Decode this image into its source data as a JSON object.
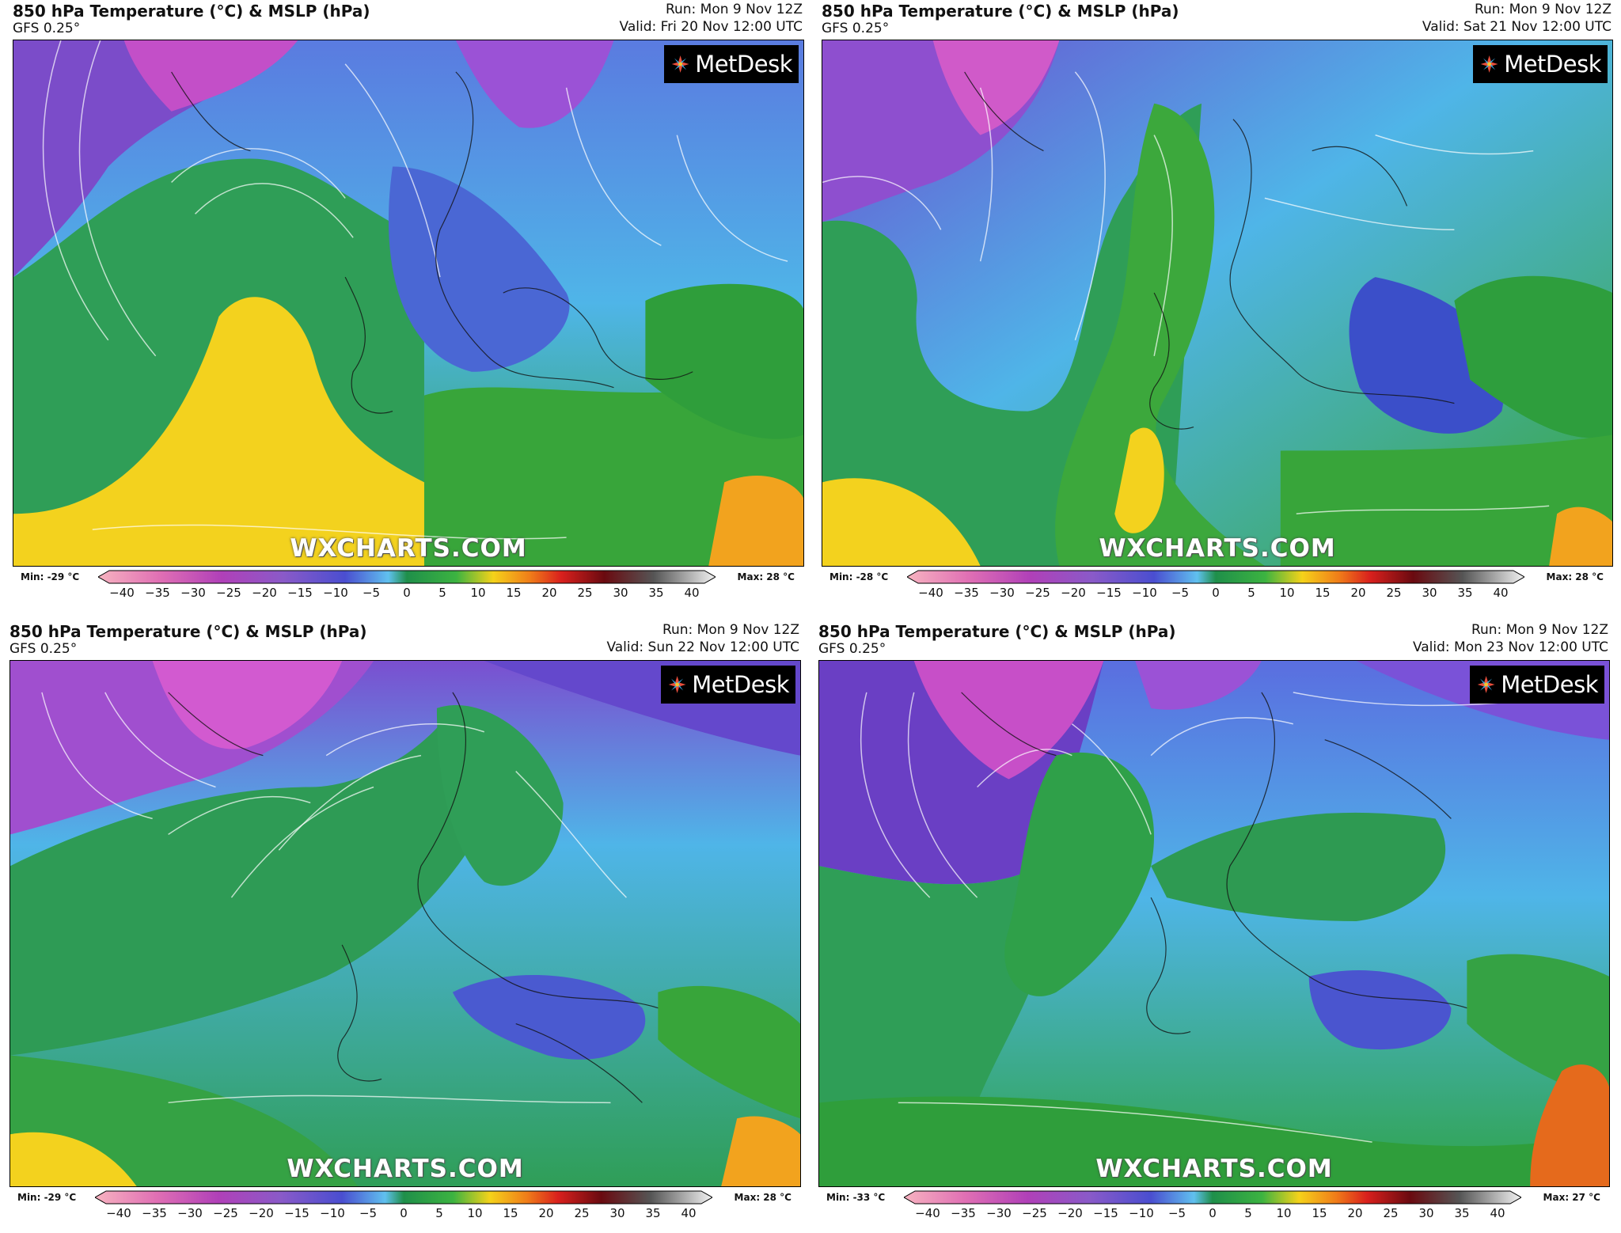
{
  "colors": {
    "accent_logo_bg": "#000000",
    "watermark": "#ffffff"
  },
  "colorbar": {
    "ticks": [
      "−40",
      "−35",
      "−30",
      "−25",
      "−20",
      "−15",
      "−10",
      "−5",
      "0",
      "5",
      "10",
      "15",
      "20",
      "25",
      "30",
      "35",
      "40"
    ]
  },
  "panels": [
    {
      "title": "850 hPa Temperature (°C) & MSLP (hPa)",
      "model": "GFS 0.25°",
      "run": "Run: Mon 9 Nov 12Z",
      "valid": "Valid: Fri 20 Nov 12:00 UTC",
      "logo": "MetDesk",
      "watermark": "WXCHARTS.COM",
      "min_label": "Min: -29 °C",
      "max_label": "Max: 28 °C"
    },
    {
      "title": "850 hPa Temperature (°C) & MSLP (hPa)",
      "model": "GFS 0.25°",
      "run": "Run: Mon 9 Nov 12Z",
      "valid": "Valid: Sat 21 Nov 12:00 UTC",
      "logo": "MetDesk",
      "watermark": "WXCHARTS.COM",
      "min_label": "Min: -28 °C",
      "max_label": "Max: 28 °C"
    },
    {
      "title": "850 hPa Temperature (°C) & MSLP (hPa)",
      "model": "GFS 0.25°",
      "run": "Run: Mon 9 Nov 12Z",
      "valid": "Valid: Sun 22 Nov 12:00 UTC",
      "logo": "MetDesk",
      "watermark": "WXCHARTS.COM",
      "min_label": "Min: -29 °C",
      "max_label": "Max: 28 °C"
    },
    {
      "title": "850 hPa Temperature (°C) & MSLP (hPa)",
      "model": "GFS 0.25°",
      "run": "Run: Mon 9 Nov 12Z",
      "valid": "Valid: Mon 23 Nov 12:00 UTC",
      "logo": "MetDesk",
      "watermark": "WXCHARTS.COM",
      "min_label": "Min: -33 °C",
      "max_label": "Max: 27 °C"
    }
  ]
}
